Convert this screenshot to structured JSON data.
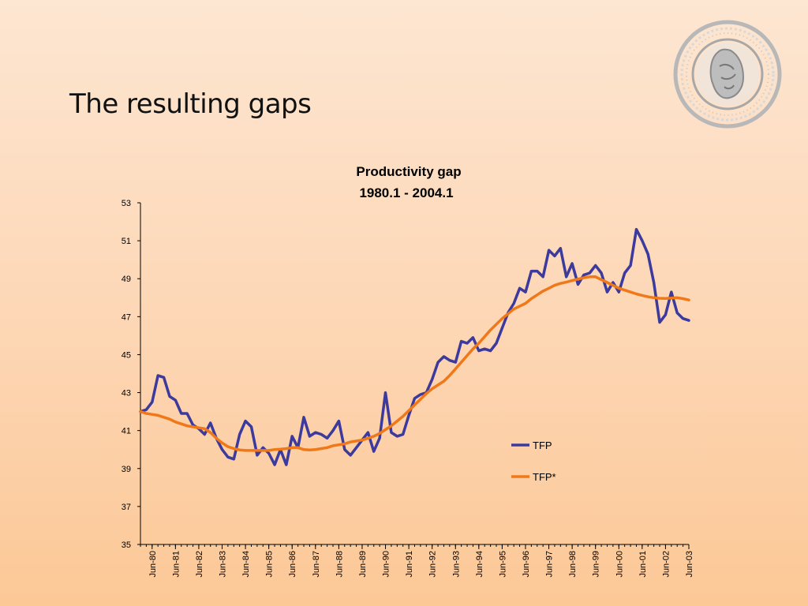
{
  "slide": {
    "title": "The resulting gaps"
  },
  "colors": {
    "tfp": "#3c3a9c",
    "tfp_star": "#f07818",
    "axis": "#000000"
  },
  "chart_data": {
    "type": "line",
    "title_lines": [
      "Productivity gap",
      "1980.1 - 2004.1"
    ],
    "ylim": [
      35,
      53
    ],
    "yticks": [
      35,
      37,
      39,
      41,
      43,
      45,
      47,
      49,
      51,
      53
    ],
    "xtick_labels": [
      "Jun-80",
      "Jun-81",
      "Jun-82",
      "Jun-83",
      "Jun-84",
      "Jun-85",
      "Jun-86",
      "Jun-87",
      "Jun-88",
      "Jun-89",
      "Jun-90",
      "Jun-91",
      "Jun-92",
      "Jun-93",
      "Jun-94",
      "Jun-95",
      "Jun-96",
      "Jun-97",
      "Jun-98",
      "Jun-99",
      "Jun-00",
      "Jun-01",
      "Jun-02",
      "Jun-03"
    ],
    "x_start": "1980Q1",
    "frequency": "quarterly",
    "legend": "right",
    "grid": false,
    "series": [
      {
        "name": "TFP",
        "color": "#3c3a9c",
        "values": [
          42.0,
          42.1,
          42.5,
          43.9,
          43.8,
          42.8,
          42.6,
          41.9,
          41.9,
          41.3,
          41.1,
          40.8,
          41.4,
          40.6,
          40.0,
          39.6,
          39.5,
          40.8,
          41.5,
          41.2,
          39.7,
          40.1,
          39.8,
          39.2,
          40.0,
          39.2,
          40.7,
          40.1,
          41.7,
          40.7,
          40.9,
          40.8,
          40.6,
          41.0,
          41.5,
          40.0,
          39.7,
          40.1,
          40.5,
          40.9,
          39.9,
          40.6,
          43.0,
          40.9,
          40.7,
          40.8,
          41.8,
          42.7,
          42.9,
          43.0,
          43.7,
          44.6,
          44.9,
          44.7,
          44.6,
          45.7,
          45.6,
          45.9,
          45.2,
          45.3,
          45.2,
          45.6,
          46.4,
          47.2,
          47.7,
          48.5,
          48.3,
          49.4,
          49.4,
          49.1,
          50.5,
          50.2,
          50.6,
          49.1,
          49.8,
          48.7,
          49.2,
          49.3,
          49.7,
          49.3,
          48.3,
          48.8,
          48.3,
          49.3,
          49.7,
          51.6,
          51.0,
          50.3,
          48.8,
          46.7,
          47.1,
          48.3,
          47.2,
          46.9,
          46.8
        ]
      },
      {
        "name": "TFP*",
        "color": "#f07818",
        "values": [
          42.0,
          41.9,
          41.85,
          41.8,
          41.7,
          41.6,
          41.45,
          41.35,
          41.25,
          41.2,
          41.15,
          41.1,
          40.9,
          40.6,
          40.35,
          40.15,
          40.05,
          39.98,
          39.95,
          39.95,
          39.95,
          39.95,
          39.95,
          40.0,
          40.02,
          40.05,
          40.1,
          40.1,
          40.0,
          39.98,
          40.0,
          40.05,
          40.1,
          40.2,
          40.25,
          40.3,
          40.4,
          40.45,
          40.5,
          40.6,
          40.7,
          40.85,
          41.05,
          41.25,
          41.5,
          41.75,
          42.05,
          42.35,
          42.65,
          42.95,
          43.2,
          43.4,
          43.6,
          43.9,
          44.25,
          44.6,
          44.95,
          45.3,
          45.6,
          45.95,
          46.3,
          46.6,
          46.9,
          47.15,
          47.4,
          47.55,
          47.7,
          47.95,
          48.15,
          48.35,
          48.5,
          48.65,
          48.75,
          48.82,
          48.9,
          48.98,
          49.05,
          49.1,
          49.1,
          48.95,
          48.8,
          48.65,
          48.5,
          48.4,
          48.3,
          48.2,
          48.12,
          48.05,
          48.0,
          47.97,
          47.96,
          47.98,
          48.0,
          47.95,
          47.88
        ]
      }
    ]
  }
}
